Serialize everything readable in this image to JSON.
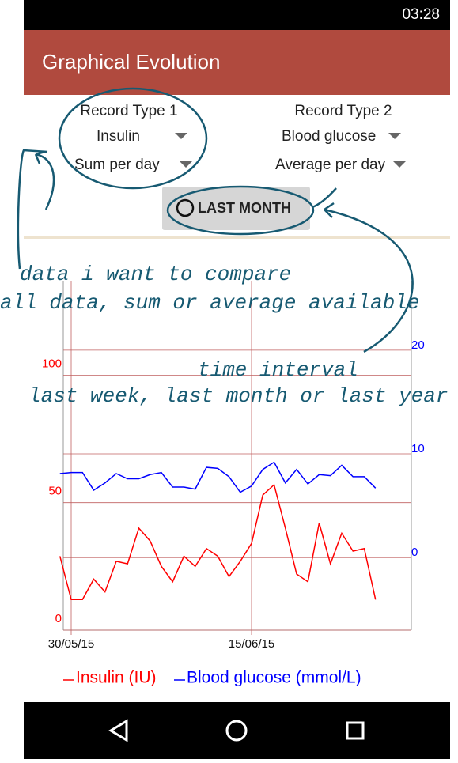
{
  "status_bar": {
    "time": "03:28"
  },
  "header": {
    "title": "Graphical Evolution"
  },
  "controls": {
    "record_type_1": {
      "label": "Record Type 1",
      "type": "Insulin",
      "aggregation": "Sum per day"
    },
    "record_type_2": {
      "label": "Record Type 2",
      "type": "Blood glucose",
      "aggregation": "Average per day"
    },
    "interval_button": "LAST MONTH"
  },
  "annotations": [
    "data i want to compare",
    "all data, sum or average available",
    "time interval",
    "last week, last month or last year"
  ],
  "chart_data": {
    "type": "line",
    "categories": [
      null,
      "30/05/15",
      null,
      null,
      null,
      null,
      null,
      null,
      null,
      null,
      null,
      null,
      null,
      null,
      null,
      null,
      null,
      "15/06/15",
      null,
      null,
      null,
      null,
      null,
      null,
      null,
      null,
      null,
      null,
      null
    ],
    "series": [
      {
        "name": "Insulin (IU)",
        "color": "#ff0000",
        "values": [
          29,
          12,
          12,
          20,
          15,
          27,
          26,
          40,
          35,
          25,
          19,
          29,
          25,
          32,
          29,
          21,
          27,
          34,
          53,
          57,
          40,
          22,
          19,
          42,
          26,
          38,
          31,
          32,
          12
        ]
      },
      {
        "name": "Blood glucose (mmol/L)",
        "color": "#0000ff",
        "axis": "y2",
        "values": [
          8.1,
          8.2,
          8.2,
          6.5,
          7.2,
          8.1,
          7.6,
          7.6,
          8.0,
          8.2,
          6.8,
          6.8,
          6.6,
          8.7,
          8.6,
          7.8,
          6.3,
          6.9,
          8.5,
          9.2,
          7.2,
          8.5,
          7.1,
          8.0,
          7.9,
          8.9,
          7.8,
          7.8,
          6.7
        ]
      }
    ],
    "ylim": [
      0,
      137
    ],
    "yticks": [
      0,
      50,
      100
    ],
    "y2lim": [
      -7,
      26.7
    ],
    "y2ticks": [
      0,
      10,
      20
    ],
    "grid": true,
    "legend": "bottom"
  }
}
